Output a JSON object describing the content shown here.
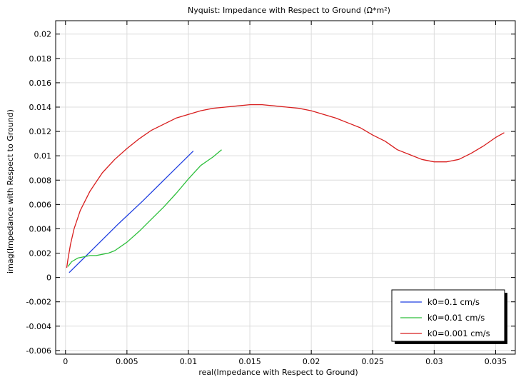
{
  "chart_data": {
    "type": "line",
    "title": "Nyquist: Impedance with Respect to Ground (Ω*m²)",
    "xlabel": "real(Impedance with Respect to Ground)",
    "ylabel": "imag(Impedance with Respect to Ground)",
    "xlim": [
      -0.0008,
      0.0366
    ],
    "ylim": [
      -0.0063,
      0.0211
    ],
    "xticks": [
      0,
      0.005,
      0.01,
      0.015,
      0.02,
      0.025,
      0.03,
      0.035
    ],
    "xtick_labels": [
      "0",
      "0.005",
      "0.01",
      "0.015",
      "0.02",
      "0.025",
      "0.03",
      "0.035"
    ],
    "yticks": [
      -0.006,
      -0.004,
      -0.002,
      0,
      0.002,
      0.004,
      0.006,
      0.008,
      0.01,
      0.012,
      0.014,
      0.016,
      0.018,
      0.02
    ],
    "ytick_labels": [
      "-0.006",
      "-0.004",
      "-0.002",
      "0",
      "0.002",
      "0.004",
      "0.006",
      "0.008",
      "0.01",
      "0.012",
      "0.014",
      "0.016",
      "0.018",
      "0.02"
    ],
    "grid": true,
    "legend_position": "bottom-right",
    "series": [
      {
        "name": "k0=0.1 cm/s",
        "color": "#1f3fe0",
        "x": [
          0.0003,
          0.0023,
          0.0043,
          0.0063,
          0.0083,
          0.0104
        ],
        "y": [
          0.0004,
          0.0024,
          0.0044,
          0.0063,
          0.0083,
          0.0104
        ]
      },
      {
        "name": "k0=0.01 cm/s",
        "color": "#2dbf3c",
        "x": [
          0.0002,
          0.0005,
          0.001,
          0.0015,
          0.002,
          0.0025,
          0.003,
          0.0035,
          0.004,
          0.005,
          0.006,
          0.007,
          0.008,
          0.009,
          0.01,
          0.011,
          0.012,
          0.0127
        ],
        "y": [
          0.0009,
          0.0013,
          0.0016,
          0.0017,
          0.0018,
          0.0018,
          0.0019,
          0.002,
          0.0022,
          0.0029,
          0.0038,
          0.0048,
          0.0058,
          0.0069,
          0.0081,
          0.0092,
          0.0099,
          0.0105
        ]
      },
      {
        "name": "k0=0.001 cm/s",
        "color": "#d81e1e",
        "x": [
          0.0001,
          0.0002,
          0.0004,
          0.0007,
          0.0012,
          0.002,
          0.003,
          0.004,
          0.005,
          0.006,
          0.007,
          0.008,
          0.009,
          0.01,
          0.011,
          0.012,
          0.013,
          0.014,
          0.015,
          0.016,
          0.017,
          0.018,
          0.019,
          0.02,
          0.021,
          0.022,
          0.023,
          0.024,
          0.025,
          0.026,
          0.027,
          0.028,
          0.029,
          0.03,
          0.031,
          0.032,
          0.033,
          0.034,
          0.035,
          0.0357
        ],
        "y": [
          0.0008,
          0.0015,
          0.0027,
          0.004,
          0.0055,
          0.0071,
          0.0086,
          0.0097,
          0.0106,
          0.0114,
          0.0121,
          0.0126,
          0.0131,
          0.0134,
          0.0137,
          0.0139,
          0.014,
          0.0141,
          0.0142,
          0.0142,
          0.0141,
          0.014,
          0.0139,
          0.0137,
          0.0134,
          0.0131,
          0.0127,
          0.0123,
          0.0117,
          0.0112,
          0.0105,
          0.0101,
          0.0097,
          0.0095,
          0.0095,
          0.0097,
          0.0102,
          0.0108,
          0.0115,
          0.0119
        ]
      }
    ]
  }
}
